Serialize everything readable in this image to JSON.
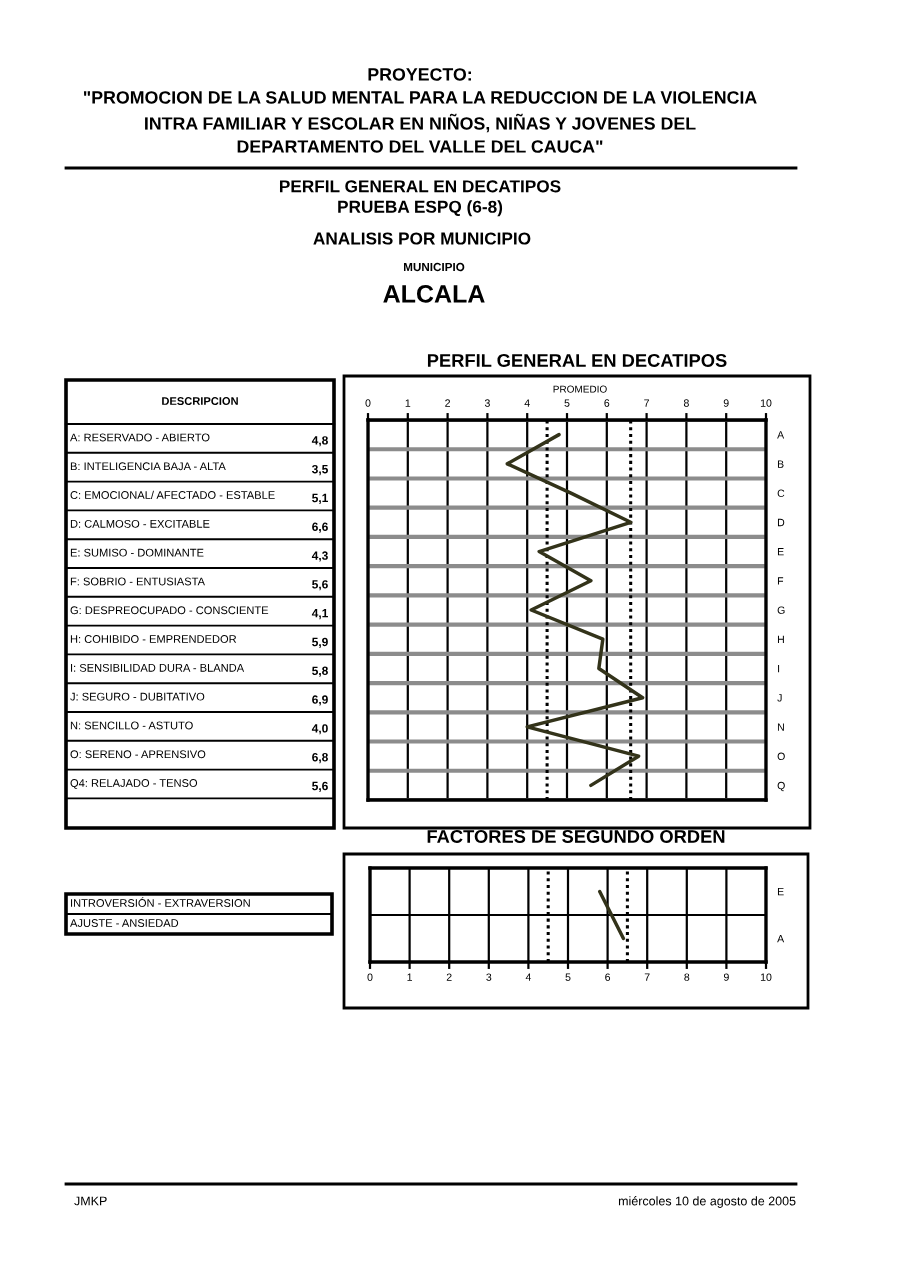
{
  "chart_data": [
    {
      "type": "other",
      "title": "PROYECTO:\n\"PROMOCION DE LA SALUD MENTAL PARA LA REDUCCION DE LA VIOLENCIA\nINTRA FAMILIAR Y ESCOLAR EN NIÑOS, NIÑAS Y JOVENES DEL\nDEPARTAMENTO DEL VALLE DEL CAUCA\"",
      "subtitle": "PERFIL GENERAL EN DECATIPOS\nPRUEBA ESPQ (6-8)",
      "annotations": [
        "ANALISIS POR MUNICIPIO",
        "MUNICIPIO",
        "ALCALA",
        "JMKP",
        "miércoles 10 de agosto de 2005"
      ]
    },
    {
      "type": "line",
      "title": "PERFIL GENERAL EN DECATIPOS",
      "orientation": "horizontal",
      "categories": [
        "A",
        "B",
        "C",
        "D",
        "E",
        "F",
        "G",
        "H",
        "I",
        "J",
        "N",
        "O",
        "Q"
      ],
      "y2label": "DESCRIPCION",
      "y2_categories": [
        "A: RESERVADO - ABIERTO",
        "B: INTELIGENCIA BAJA - ALTA",
        "C: EMOCIONAL/ AFECTADO - ESTABLE",
        "D: CALMOSO - EXCITABLE",
        "E: SUMISO - DOMINANTE",
        "F: SOBRIO - ENTUSIASTA",
        "G: DESPREOCUPADO - CONSCIENTE",
        "H: COHIBIDO - EMPRENDEDOR",
        "I: SENSIBILIDAD DURA - BLANDA",
        "J: SEGURO - DUBITATIVO",
        "N: SENCILLO - ASTUTO",
        "O: SERENO - APRENSIVO",
        "Q4: RELAJADO - TENSO"
      ],
      "values": [
        4.8,
        3.5,
        5.1,
        6.6,
        4.3,
        5.6,
        4.1,
        5.9,
        5.8,
        6.9,
        4.0,
        6.8,
        5.6
      ],
      "value_labels": [
        "4,8",
        "3,5",
        "5,1",
        "6,6",
        "4,3",
        "5,6",
        "4,1",
        "5,9",
        "5,8",
        "6,9",
        "4,0",
        "6,8",
        "5,6"
      ],
      "color": "#33331a",
      "xlim": [
        0,
        10
      ],
      "xticks": [
        0,
        1,
        2,
        3,
        4,
        5,
        6,
        7,
        8,
        9,
        10
      ],
      "grid": true,
      "ref_lines": [
        {
          "axis": "x",
          "value": 4.5,
          "color": "#000000",
          "line_style": "dotted"
        },
        {
          "axis": "x",
          "value": 6.6,
          "color": "#000000",
          "line_style": "dotted"
        }
      ],
      "annotations": [
        "PROMEDIO"
      ]
    },
    {
      "type": "line",
      "title": "FACTORES DE SEGUNDO ORDEN",
      "orientation": "horizontal",
      "categories": [
        "E",
        "A"
      ],
      "y2_categories": [
        "INTROVERSIÓN - EXTRAVERSION",
        "AJUSTE - ANSIEDAD"
      ],
      "values": [
        5.8,
        6.4
      ],
      "color": "#33331a",
      "xlim": [
        0,
        10
      ],
      "xticks": [
        0,
        1,
        2,
        3,
        4,
        5,
        6,
        7,
        8,
        9,
        10
      ],
      "grid": true,
      "ref_lines": [
        {
          "axis": "x",
          "value": 4.5,
          "color": "#000000",
          "line_style": "dotted"
        },
        {
          "axis": "x",
          "value": 6.5,
          "color": "#000000",
          "line_style": "dotted"
        }
      ]
    }
  ]
}
